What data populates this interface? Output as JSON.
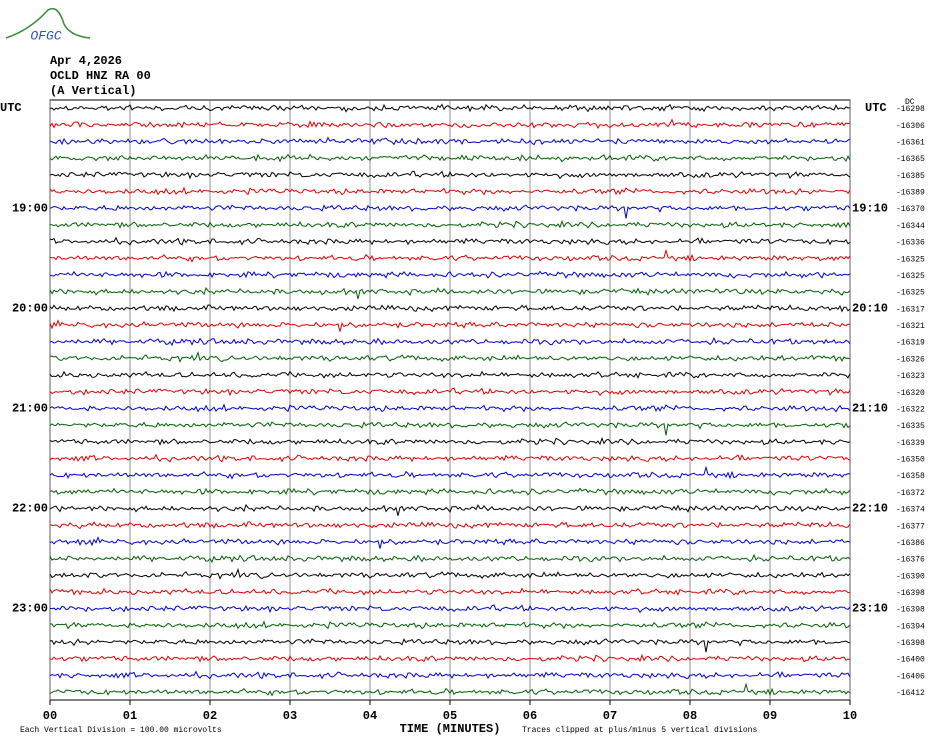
{
  "logo_text": "OFGC",
  "header": {
    "date": "Apr 4,2026",
    "station": "OCLD HNZ RA 00",
    "component": "(A Vertical)"
  },
  "chart_data": {
    "type": "helicorder",
    "xlabel": "TIME (MINUTES)",
    "xlim": [
      0,
      10
    ],
    "xticks": [
      {
        "value": 0,
        "label": "00"
      },
      {
        "value": 1,
        "label": "01"
      },
      {
        "value": 2,
        "label": "02"
      },
      {
        "value": 3,
        "label": "03"
      },
      {
        "value": 4,
        "label": "04"
      },
      {
        "value": 5,
        "label": "05"
      },
      {
        "value": 6,
        "label": "06"
      },
      {
        "value": 7,
        "label": "07"
      },
      {
        "value": 8,
        "label": "08"
      },
      {
        "value": 9,
        "label": "09"
      },
      {
        "value": 10,
        "label": "10"
      }
    ],
    "grid": true,
    "colors": [
      "#000000",
      "#e00000",
      "#0000d0",
      "#006000"
    ],
    "left_labels": [
      "UTC",
      null,
      null,
      null,
      null,
      null,
      "19:00",
      null,
      null,
      null,
      null,
      null,
      "20:00",
      null,
      null,
      null,
      null,
      null,
      "21:00",
      null,
      null,
      null,
      null,
      null,
      "22:00",
      null,
      null,
      null,
      null,
      null,
      "23:00",
      null,
      null,
      null,
      null,
      null
    ],
    "right_labels": [
      "UTC",
      null,
      null,
      null,
      null,
      null,
      "19:10",
      null,
      null,
      null,
      null,
      null,
      "20:10",
      null,
      null,
      null,
      null,
      null,
      "21:10",
      null,
      null,
      null,
      null,
      null,
      "22:10",
      null,
      null,
      null,
      null,
      null,
      "23:10",
      null,
      null,
      null,
      null,
      null
    ],
    "dc_label": "DC",
    "offsets": [
      -16298,
      -16306,
      -16361,
      -16365,
      -16385,
      -16389,
      -16370,
      -16344,
      -16336,
      -16325,
      -16325,
      -16325,
      -16317,
      -16321,
      -16319,
      -16326,
      -16323,
      -16320,
      -16322,
      -16335,
      -16339,
      -16350,
      -16358,
      -16372,
      -16374,
      -16377,
      -16386,
      -16376,
      -16390,
      -16398,
      -16398,
      -16394,
      -16398,
      -16400,
      -16406,
      -16412
    ]
  },
  "footer": {
    "scale": "Each Vertical Division =  100.00 microvolts",
    "clip": "Traces clipped at plus/minus 5 vertical divisions"
  }
}
